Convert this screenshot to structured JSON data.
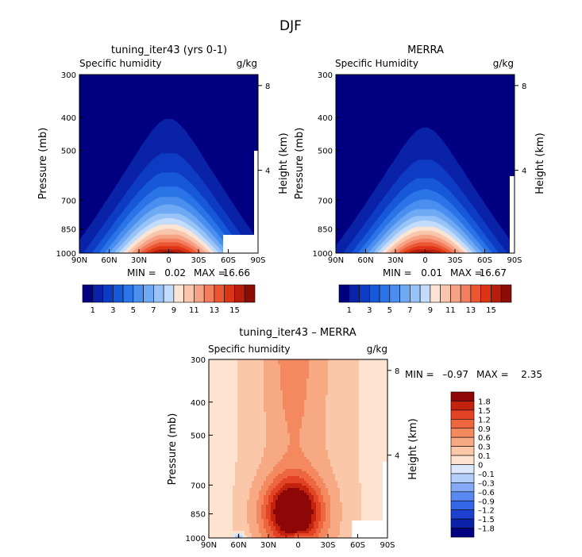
{
  "title": "DJF",
  "colors": {
    "abs_scale": [
      "#000080",
      "#0a22a8",
      "#0d3bc4",
      "#1758d8",
      "#2b74e8",
      "#4a8ff0",
      "#6fa9f4",
      "#98c3f8",
      "#c4dcfb",
      "#fbe4d4",
      "#f9c5ad",
      "#f6a285",
      "#f37d5e",
      "#ec5733",
      "#dc3516",
      "#b81d0b",
      "#8c0c06"
    ],
    "diff_scale": [
      "#000080",
      "#0a22a8",
      "#1e40d0",
      "#3366e8",
      "#5888f0",
      "#84aaf5",
      "#b4cdfa",
      "#dbe8fd",
      "#fde3d0",
      "#fac8a8",
      "#f7a983",
      "#f4885f",
      "#ee6640",
      "#e14324",
      "#c2220e",
      "#8e0707"
    ]
  },
  "chart_data": [
    {
      "type": "heatmap",
      "title": "tuning_iter43 (yrs 0-1)",
      "subtitle_left": "Specific humidity",
      "subtitle_right": "g/kg",
      "ylabel": "Pressure (mb)",
      "ylabel_right": "Height (km)",
      "x": [
        "90N",
        "60N",
        "30N",
        "0",
        "30S",
        "60S",
        "90S"
      ],
      "x_values": [
        90,
        60,
        30,
        0,
        -30,
        -60,
        -90
      ],
      "y": [
        "300",
        "400",
        "500",
        "700",
        "850",
        "1000"
      ],
      "y_values": [
        300,
        400,
        500,
        700,
        850,
        1000
      ],
      "y_right": [
        "8",
        "4"
      ],
      "y_right_values": [
        8,
        4
      ],
      "min_label": "MIN =",
      "min": "0.02",
      "max_label": "MAX =",
      "max": "16.66",
      "field": {
        "peak_lat": 0,
        "peak_value": 16.66,
        "moist_top_mb": 355,
        "base_halfwidth_deg": 75
      }
    },
    {
      "type": "heatmap",
      "title": "MERRA",
      "subtitle_left": "Specific Humidity",
      "subtitle_right": "g/kg",
      "ylabel": "Pressure (mb)",
      "ylabel_right": "Height (km)",
      "x": [
        "90N",
        "60N",
        "30N",
        "0",
        "30S",
        "60S",
        "90S"
      ],
      "x_values": [
        90,
        60,
        30,
        0,
        -30,
        -60,
        -90
      ],
      "y": [
        "300",
        "400",
        "500",
        "700",
        "850",
        "1000"
      ],
      "y_values": [
        300,
        400,
        500,
        700,
        850,
        1000
      ],
      "y_right": [
        "8",
        "4"
      ],
      "y_right_values": [
        8,
        4
      ],
      "min_label": "MIN =",
      "min": "0.01",
      "max_label": "MAX =",
      "max": "16.67",
      "field": {
        "peak_lat": 0,
        "peak_value": 16.67,
        "moist_top_mb": 380,
        "base_halfwidth_deg": 72
      }
    },
    {
      "type": "heatmap",
      "title": "tuning_iter43 – MERRA",
      "subtitle_left": "Specific humidity",
      "subtitle_right": "g/kg",
      "ylabel": "Pressure (mb)",
      "ylabel_right": "Height (km)",
      "x": [
        "90N",
        "60N",
        "30N",
        "0",
        "30S",
        "60S",
        "90S"
      ],
      "x_values": [
        90,
        60,
        30,
        0,
        -30,
        -60,
        -90
      ],
      "y": [
        "300",
        "400",
        "500",
        "700",
        "850",
        "1000"
      ],
      "y_values": [
        300,
        400,
        500,
        700,
        850,
        1000
      ],
      "y_right": [
        "8",
        "4"
      ],
      "y_right_values": [
        8,
        4
      ],
      "min_label": "MIN =",
      "min": "–0.97",
      "max_label": "MAX =",
      "max": "2.35",
      "field": {
        "peak_lat": 5,
        "peak_pressure_mb": 840,
        "peak_value": 2.35
      }
    }
  ],
  "colorbar_abs": {
    "ticks": [
      "1",
      "3",
      "5",
      "7",
      "9",
      "11",
      "13",
      "15"
    ],
    "boundaries": [
      1,
      2,
      3,
      4,
      5,
      6,
      7,
      8,
      9,
      10,
      11,
      12,
      13,
      14,
      15,
      16
    ]
  },
  "colorbar_diff": {
    "ticks": [
      "1.8",
      "1.5",
      "1.2",
      "0.9",
      "0.6",
      "0.3",
      "0.1",
      "0",
      "–0.1",
      "–0.3",
      "–0.6",
      "–0.9",
      "–1.2",
      "–1.5",
      "–1.8"
    ],
    "boundaries": [
      1.8,
      1.5,
      1.2,
      0.9,
      0.6,
      0.3,
      0.1,
      0,
      -0.1,
      -0.3,
      -0.6,
      -0.9,
      -1.2,
      -1.5,
      -1.8
    ]
  }
}
